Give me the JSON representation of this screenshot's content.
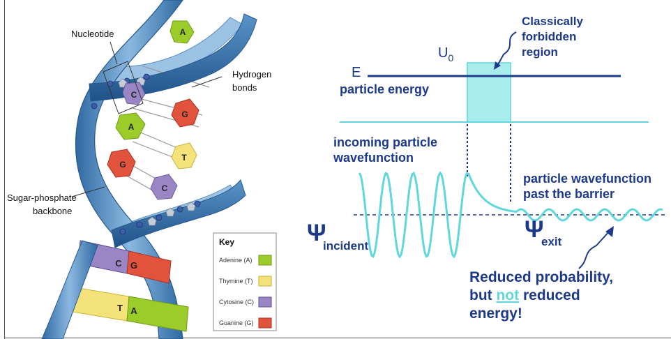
{
  "dna": {
    "labels": {
      "nucleotide": "Nucleotide",
      "hydrogen_line1": "Hydrogen",
      "hydrogen_line2": "bonds",
      "backbone_line1": "Sugar-phosphate",
      "backbone_line2": "backbone"
    },
    "bases": [
      "A",
      "C",
      "G",
      "A",
      "T",
      "G",
      "C",
      "C",
      "G",
      "T",
      "A"
    ],
    "key": {
      "title": "Key",
      "items": [
        {
          "label": "Adenine (A)",
          "color": "#9ccc2a"
        },
        {
          "label": "Thymine (T)",
          "color": "#f4e27a"
        },
        {
          "label": "Cytosine (C)",
          "color": "#9a86c4"
        },
        {
          "label": "Guanine (G)",
          "color": "#e2533e"
        }
      ]
    },
    "colors": {
      "backbone": "#4f89bd",
      "backbone_light": "#a9c8e6",
      "adenine": "#9ccc2a",
      "thymine": "#f4e27a",
      "cytosine": "#9a86c4",
      "guanine": "#e2533e"
    }
  },
  "tunneling": {
    "e_label": "E",
    "particle_energy": "particle energy",
    "u0_main": "U",
    "u0_sub": "0",
    "forbidden_line1": "Classically",
    "forbidden_line2": "forbidden",
    "forbidden_line3": "region",
    "incoming_line1": "incoming particle",
    "incoming_line2": "wavefunction",
    "past_line1": "particle wavefunction",
    "past_line2": "past the barrier",
    "psi_symbol": "Ψ",
    "psi_incident_sub": "incident",
    "psi_exit_sub": "exit",
    "reduced_line1": "Reduced probability,",
    "reduced_line2_pre": "but ",
    "reduced_line2_not": "not",
    "reduced_line2_post": " reduced",
    "reduced_line3": "energy!",
    "colors": {
      "text": "#1d3a8a",
      "wave": "#5fd7dc",
      "barrier_fill": "#a8ecee",
      "barrier_stroke": "#5fd7dc",
      "energy_line": "#1d3a8a",
      "not_word": "#5fd7dc"
    }
  }
}
